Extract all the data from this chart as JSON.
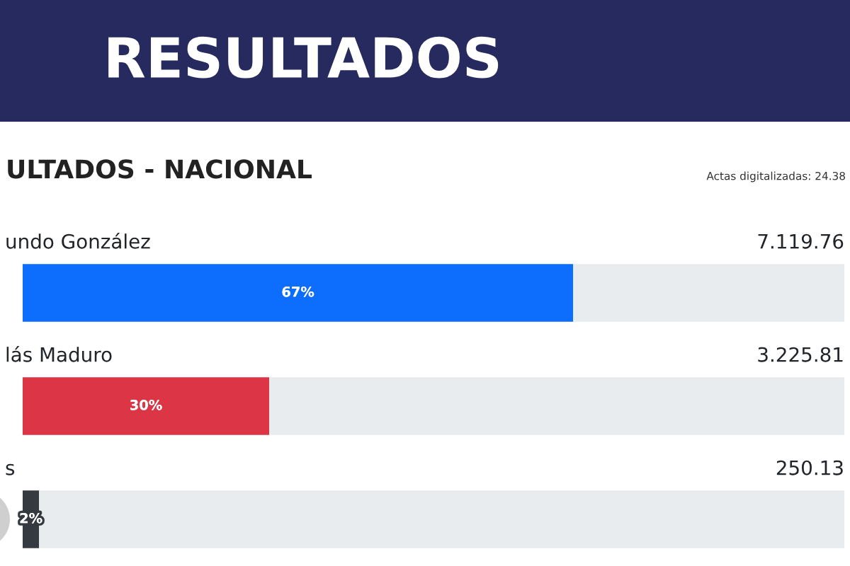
{
  "chart_data": {
    "type": "bar",
    "orientation": "horizontal",
    "stacked": true,
    "title": "RESULTADOS",
    "subtitle": "ULTADOS - NACIONAL",
    "categories": [
      "undo González",
      "lás Maduro",
      "s"
    ],
    "series": [
      {
        "colors": [
          "#0d6efd",
          "#dc3545",
          "#343a40"
        ],
        "values": [
          67,
          30,
          2
        ],
        "value_labels": [
          "67%",
          "30%",
          "2%"
        ]
      },
      {
        "color": "#e9ecef",
        "values": [
          33,
          70,
          98
        ]
      }
    ],
    "xlim": [
      0,
      100
    ],
    "tick_labels": "y",
    "annotations": [
      "Actas digitalizadas: 24.38",
      "7.119.76",
      "3.225.81",
      "250.13"
    ]
  }
}
